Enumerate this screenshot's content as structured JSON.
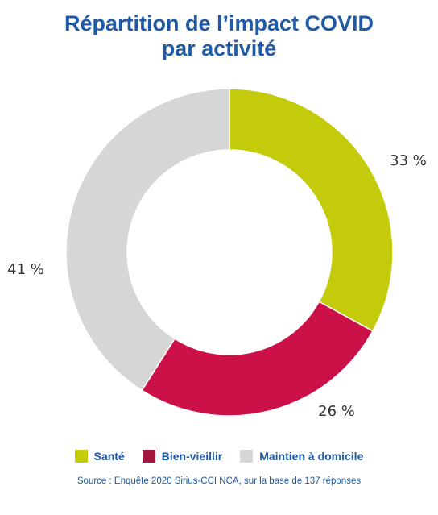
{
  "title": {
    "line1": "Répartition de l’impact COVID",
    "line2": "par activité"
  },
  "chart_data": {
    "type": "pie",
    "donut": true,
    "title": "Répartition de l’impact COVID par activité",
    "categories": [
      "Santé",
      "Bien-vieillir",
      "Maintien à domicile"
    ],
    "values": [
      33,
      26,
      41
    ],
    "labels": [
      "33 %",
      "26 %",
      "41 %"
    ],
    "colors": [
      "#c3cb0b",
      "#cc1048",
      "#d6d6d6"
    ],
    "legend_position": "bottom"
  },
  "legend": [
    {
      "label": "Santé",
      "color": "#c3cb0b"
    },
    {
      "label": "Bien-vieillir",
      "color": "#a5163d"
    },
    {
      "label": "Maintien à domicile",
      "color": "#d6d6d6"
    }
  ],
  "source": "Source : Enquête 2020 Sirius-CCI NCA, sur la base de 137 réponses"
}
